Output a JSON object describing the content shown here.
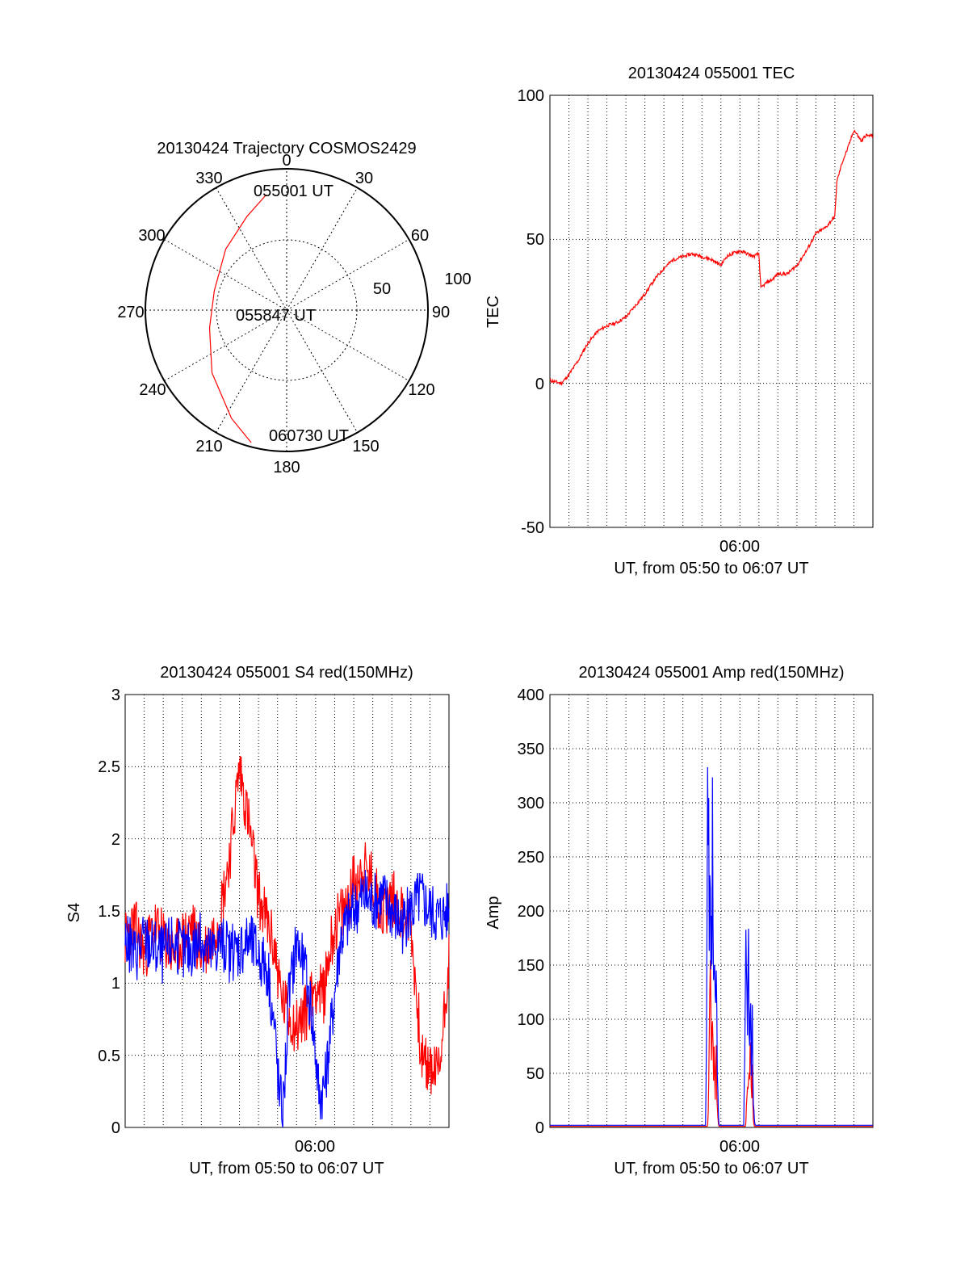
{
  "chart_data": [
    {
      "type": "polar",
      "title": "20130424 Trajectory COSMOS2429",
      "azimuth_labels": [
        "0",
        "30",
        "60",
        "90",
        "120",
        "150",
        "180",
        "210",
        "240",
        "270",
        "300",
        "330"
      ],
      "radial_labels": [
        "50",
        "100"
      ],
      "time_labels": {
        "start": "055001 UT",
        "mid": "055847 UT",
        "end": "060730 UT"
      },
      "track_color": "#ff0000",
      "trajectory": [
        {
          "az": 350,
          "r": 83
        },
        {
          "az": 337,
          "r": 72
        },
        {
          "az": 315,
          "r": 61
        },
        {
          "az": 285,
          "r": 53
        },
        {
          "az": 257,
          "r": 56
        },
        {
          "az": 230,
          "r": 69
        },
        {
          "az": 207,
          "r": 86
        },
        {
          "az": 195,
          "r": 97
        }
      ]
    },
    {
      "type": "line",
      "title": "20130424 055001 TEC",
      "ylabel": "TEC",
      "xlabel": "UT, from 05:50 to 06:07 UT",
      "xtick_label": "06:00",
      "yticks": [
        "100",
        "50",
        "0",
        "-50"
      ],
      "ylim": [
        -50,
        100
      ],
      "xlim_minutes": [
        0,
        17
      ],
      "grid": true,
      "series": [
        {
          "color": "#ff0000",
          "x": [
            0,
            0.6,
            1.0,
            1.5,
            2.0,
            2.5,
            3.0,
            3.5,
            4.0,
            4.5,
            5.0,
            5.5,
            6.0,
            6.5,
            7.0,
            7.5,
            8.0,
            8.5,
            9.0,
            9.3,
            9.6,
            10.0,
            10.4,
            10.7,
            11.0,
            11.1,
            11.4,
            11.7,
            12.0,
            12.5,
            13.0,
            13.5,
            14.0,
            14.5,
            15.0,
            15.1,
            15.4,
            15.7,
            16.0,
            16.2,
            16.4,
            16.6,
            17.0
          ],
          "y": [
            1,
            0,
            3,
            8,
            14,
            18,
            20,
            21,
            23,
            27,
            31,
            36,
            40,
            43,
            44,
            45,
            44,
            43,
            41,
            44,
            45,
            46,
            45,
            44,
            45,
            33,
            35,
            36,
            38,
            38,
            41,
            46,
            52,
            54,
            58,
            70,
            77,
            82,
            88,
            86,
            84,
            86,
            86
          ]
        }
      ]
    },
    {
      "type": "line",
      "title": "20130424 055001 S4 red(150MHz)",
      "ylabel": "S4",
      "xlabel": "UT, from 05:50 to 06:07 UT",
      "xtick_label": "06:00",
      "yticks": [
        "3",
        "2.5",
        "2",
        "1.5",
        "1",
        "0.5",
        "0"
      ],
      "ylim": [
        0,
        3
      ],
      "xlim_minutes": [
        0,
        17
      ],
      "grid": true,
      "series": [
        {
          "color": "#ff0000",
          "x": [
            0,
            0.5,
            1.0,
            1.5,
            2.0,
            2.5,
            3.0,
            3.5,
            4.0,
            4.5,
            5.0,
            5.5,
            6.0,
            6.5,
            7.0,
            7.5,
            7.9,
            8.2,
            8.5,
            9.0,
            9.5,
            10.0,
            10.4,
            10.7,
            11.0,
            11.5,
            12.0,
            12.5,
            13.0,
            13.5,
            14.0,
            14.5,
            15.0,
            15.3,
            15.6,
            16.0,
            16.5,
            17.0
          ],
          "y": [
            1.3,
            1.4,
            1.2,
            1.4,
            1.3,
            1.2,
            1.3,
            1.4,
            1.2,
            1.3,
            1.5,
            1.9,
            2.5,
            2.1,
            1.6,
            1.4,
            1.2,
            0.9,
            0.8,
            0.7,
            0.8,
            1.0,
            0.9,
            1.2,
            1.4,
            1.5,
            1.7,
            1.8,
            1.7,
            1.5,
            1.6,
            1.5,
            1.4,
            0.9,
            0.45,
            0.4,
            0.4,
            1.2
          ]
        },
        {
          "color": "#0000ff",
          "x": [
            0,
            0.5,
            1.0,
            1.5,
            2.0,
            2.5,
            3.0,
            3.5,
            4.0,
            4.5,
            5.0,
            5.5,
            6.0,
            6.5,
            7.0,
            7.5,
            7.9,
            8.1,
            8.3,
            8.6,
            9.0,
            9.4,
            9.8,
            10.2,
            10.5,
            10.9,
            11.3,
            11.6,
            12.0,
            12.5,
            13.0,
            13.5,
            14.0,
            14.5,
            15.0,
            15.5,
            16.0,
            16.5,
            17.0
          ],
          "y": [
            1.3,
            1.2,
            1.3,
            1.25,
            1.2,
            1.3,
            1.2,
            1.25,
            1.3,
            1.2,
            1.3,
            1.2,
            1.25,
            1.3,
            1.2,
            1.1,
            0.6,
            0.2,
            0.15,
            0.9,
            1.3,
            1.1,
            0.8,
            0.2,
            0.3,
            0.8,
            1.3,
            1.4,
            1.5,
            1.6,
            1.55,
            1.6,
            1.5,
            1.4,
            1.5,
            1.6,
            1.5,
            1.45,
            1.5
          ]
        }
      ]
    },
    {
      "type": "line",
      "title": "20130424 055001 Amp red(150MHz)",
      "ylabel": "Amp",
      "xlabel": "UT, from 05:50 to 06:07 UT",
      "xtick_label": "06:00",
      "yticks": [
        "400",
        "350",
        "300",
        "250",
        "200",
        "150",
        "100",
        "50",
        "0"
      ],
      "ylim": [
        0,
        400
      ],
      "xlim_minutes": [
        0,
        17
      ],
      "grid": true,
      "series": [
        {
          "color": "#ff0000",
          "x": [
            0,
            8.3,
            8.35,
            8.4,
            8.45,
            8.5,
            8.55,
            8.6,
            8.65,
            8.7,
            8.75,
            8.8,
            8.85,
            8.9,
            9.5,
            10.3,
            10.35,
            10.4,
            10.45,
            10.5,
            10.55,
            10.6,
            10.65,
            10.7,
            10.75,
            17
          ],
          "y": [
            1,
            1,
            30,
            90,
            140,
            60,
            120,
            40,
            110,
            30,
            80,
            20,
            5,
            1,
            1,
            1,
            20,
            40,
            60,
            30,
            70,
            25,
            50,
            10,
            1,
            1
          ]
        },
        {
          "color": "#0000ff",
          "x": [
            0,
            8.2,
            8.25,
            8.3,
            8.35,
            8.4,
            8.45,
            8.5,
            8.55,
            8.6,
            8.65,
            8.7,
            8.75,
            8.8,
            8.85,
            8.9,
            9.5,
            10.2,
            10.25,
            10.3,
            10.35,
            10.4,
            10.45,
            10.5,
            10.55,
            10.6,
            10.65,
            10.7,
            10.75,
            10.8,
            17
          ],
          "y": [
            2,
            2,
            80,
            250,
            275,
            180,
            270,
            150,
            282,
            120,
            230,
            100,
            200,
            60,
            20,
            2,
            2,
            2,
            60,
            150,
            160,
            110,
            158,
            70,
            128,
            60,
            110,
            30,
            10,
            2,
            2
          ]
        }
      ]
    }
  ]
}
